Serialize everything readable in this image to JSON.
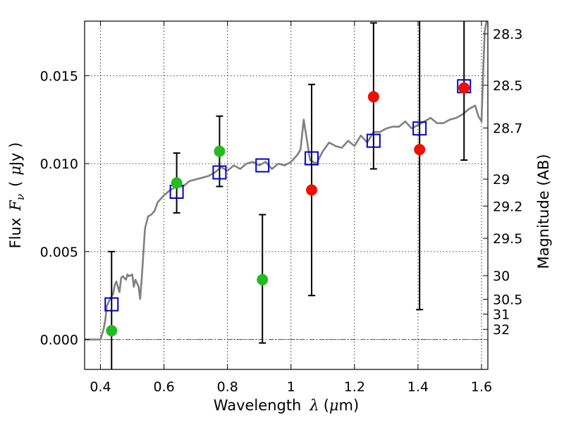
{
  "chart_data": {
    "type": "scatter",
    "xlabel_text": "Wavelength",
    "xlabel_symbol": "λ",
    "xlabel_unit_open": "(",
    "xlabel_unit_mu": "μ",
    "xlabel_unit_rest": "m)",
    "ylabel_text": "Flux",
    "ylabel_symbol": "F",
    "ylabel_sub": "ν",
    "ylabel_unit_open": "(",
    "ylabel_unit_mu": "μ",
    "ylabel_unit_rest": "Jy )",
    "y2label": "Magnitude (AB)",
    "xlim": [
      0.35,
      1.62
    ],
    "ylim": [
      -0.0017,
      0.0181
    ],
    "x_ticks": [
      0.4,
      0.6,
      0.8,
      1.0,
      1.2,
      1.4,
      1.6
    ],
    "x_tick_labels": [
      "0.4",
      "0.6",
      "0.8",
      "1",
      "1.2",
      "1.4",
      "1.6"
    ],
    "y_ticks": [
      0.0,
      0.005,
      0.01,
      0.015
    ],
    "y_tick_labels": [
      "0.000",
      "0.005",
      "0.010",
      "0.015"
    ],
    "mag_ticks": [
      28.3,
      28.5,
      28.7,
      29,
      29.2,
      29.5,
      30,
      30.5,
      31,
      32
    ],
    "mag_tick_labels": [
      "28.3",
      "28.5",
      "28.7",
      "29",
      "29.2",
      "29.5",
      "30",
      "30.5",
      "31",
      "32"
    ],
    "grid": true,
    "colors": {
      "model_line": "#808080",
      "model_photometry": "#0000cc",
      "green_points": "#22bb22",
      "red_points": "#ee1100",
      "error_bars": "#000000",
      "zero_line": "#555555"
    },
    "series": [
      {
        "kind": "model_sed",
        "x": [
          0.35,
          0.38,
          0.39,
          0.4,
          0.41,
          0.415,
          0.42,
          0.43,
          0.44,
          0.445,
          0.45,
          0.46,
          0.465,
          0.47,
          0.48,
          0.485,
          0.49,
          0.5,
          0.505,
          0.51,
          0.52,
          0.525,
          0.53,
          0.54,
          0.55,
          0.56,
          0.57,
          0.58,
          0.6,
          0.62,
          0.64,
          0.66,
          0.68,
          0.7,
          0.72,
          0.74,
          0.76,
          0.78,
          0.8,
          0.82,
          0.84,
          0.86,
          0.88,
          0.9,
          0.92,
          0.94,
          0.96,
          0.98,
          1.0,
          1.02,
          1.03,
          1.04,
          1.06,
          1.08,
          1.1,
          1.12,
          1.14,
          1.16,
          1.18,
          1.2,
          1.22,
          1.24,
          1.26,
          1.28,
          1.3,
          1.32,
          1.34,
          1.36,
          1.38,
          1.4,
          1.42,
          1.44,
          1.46,
          1.48,
          1.5,
          1.52,
          1.54,
          1.56,
          1.58,
          1.59,
          1.6,
          1.605,
          1.61,
          1.62
        ],
        "y": [
          0.0,
          0.0,
          0.0,
          0.0,
          0.0006,
          0.0011,
          0.0019,
          0.0023,
          0.0026,
          0.0031,
          0.0033,
          0.0027,
          0.0035,
          0.0036,
          0.0034,
          0.0037,
          0.0036,
          0.0037,
          0.003,
          0.0034,
          0.003,
          0.0023,
          0.0035,
          0.0063,
          0.007,
          0.0071,
          0.0073,
          0.0078,
          0.0082,
          0.0085,
          0.0087,
          0.0087,
          0.009,
          0.0091,
          0.0092,
          0.0093,
          0.0095,
          0.0098,
          0.0096,
          0.0099,
          0.0097,
          0.01,
          0.0101,
          0.0099,
          0.0101,
          0.0097,
          0.01,
          0.0099,
          0.0101,
          0.0105,
          0.0108,
          0.0125,
          0.0102,
          0.01,
          0.0107,
          0.0112,
          0.011,
          0.0109,
          0.0113,
          0.011,
          0.0116,
          0.0112,
          0.0118,
          0.0118,
          0.012,
          0.0121,
          0.0121,
          0.0124,
          0.012,
          0.0122,
          0.0124,
          0.0126,
          0.0123,
          0.0123,
          0.0125,
          0.0126,
          0.0128,
          0.0131,
          0.0133,
          0.0127,
          0.0124,
          0.015,
          0.0175,
          0.0185
        ]
      },
      {
        "kind": "model_photometry",
        "marker": "open-square",
        "x": [
          0.435,
          0.64,
          0.775,
          0.91,
          1.065,
          1.26,
          1.405,
          1.545
        ],
        "y": [
          0.002,
          0.0084,
          0.0095,
          0.0099,
          0.0103,
          0.0113,
          0.012,
          0.0144
        ]
      },
      {
        "kind": "observed",
        "marker": "filled-circle",
        "color": "green",
        "x": [
          0.435,
          0.64,
          0.775,
          0.91
        ],
        "y": [
          0.0005,
          0.0089,
          0.0107,
          0.0034
        ],
        "yerr_low": [
          -0.0017,
          0.0072,
          0.0087,
          -0.0002
        ],
        "yerr_high": [
          0.005,
          0.0106,
          0.0127,
          0.0071
        ]
      },
      {
        "kind": "observed",
        "marker": "filled-circle",
        "color": "red",
        "x": [
          1.065,
          1.26,
          1.405,
          1.545
        ],
        "y": [
          0.0085,
          0.0138,
          0.0108,
          0.0143
        ],
        "yerr_low": [
          0.0025,
          0.0097,
          0.0017,
          0.0102
        ],
        "yerr_high": [
          0.0145,
          0.018,
          0.0181,
          0.0181
        ]
      }
    ]
  }
}
